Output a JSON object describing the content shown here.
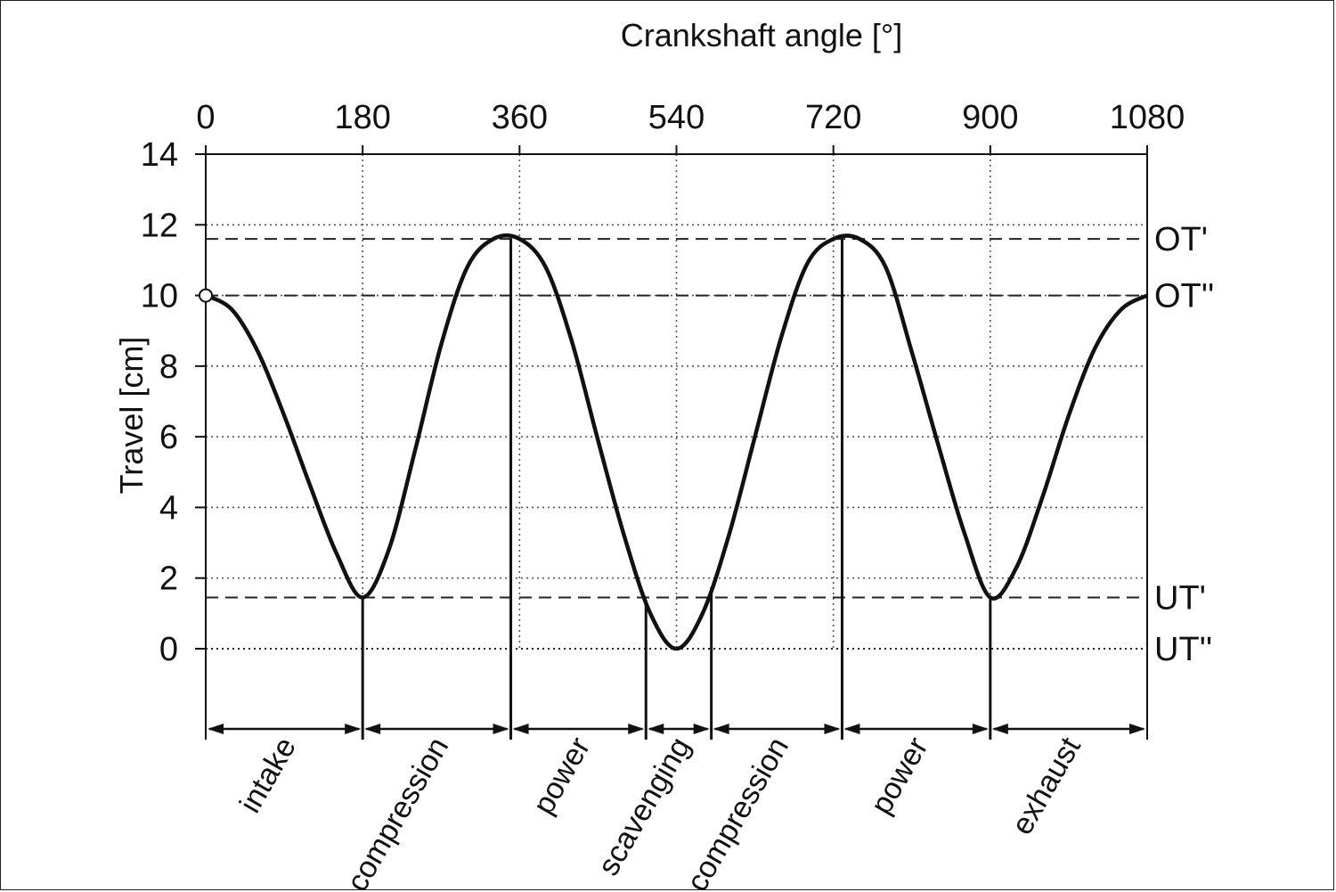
{
  "chart_data": {
    "type": "line",
    "title": "",
    "xlabel": "Crankshaft angle [°]",
    "ylabel": "Travel [cm]",
    "xlim": [
      0,
      1080
    ],
    "ylim": [
      0,
      14
    ],
    "x_ticks": [
      "0",
      "180",
      "360",
      "540",
      "720",
      "900",
      "1080"
    ],
    "y_ticks": [
      "14",
      "12",
      "10",
      "8",
      "6",
      "4",
      "2",
      "0"
    ],
    "grid": true,
    "series": [
      {
        "x": [
          0,
          30,
          60,
          90,
          120,
          150,
          180,
          210,
          240,
          270,
          300,
          330,
          360,
          390,
          420,
          450,
          480,
          510,
          540,
          570,
          600,
          630,
          660,
          690,
          720,
          750,
          780,
          810,
          840,
          870,
          900,
          930,
          960,
          990,
          1020,
          1050,
          1080
        ],
        "values": [
          10,
          9.6,
          8.4,
          6.6,
          4.6,
          2.7,
          1.45,
          2.8,
          5.6,
          8.6,
          10.8,
          11.6,
          11.6,
          10.8,
          8.7,
          5.9,
          3.2,
          1.0,
          0.0,
          1.0,
          3.2,
          6.0,
          8.8,
          10.9,
          11.6,
          11.6,
          10.8,
          8.4,
          5.8,
          3.3,
          1.45,
          2.3,
          4.3,
          6.6,
          8.5,
          9.6,
          10
        ]
      }
    ],
    "reference_lines": [
      {
        "label": "OT'",
        "y": 11.6
      },
      {
        "label": "OT''",
        "y": 10.0
      },
      {
        "label": "UT'",
        "y": 1.45
      },
      {
        "label": "UT''",
        "y": 0.0
      }
    ],
    "phases": [
      {
        "label": "intake",
        "start": 0,
        "end": 180
      },
      {
        "label": "compression",
        "start": 180,
        "end": 350
      },
      {
        "label": "power",
        "start": 350,
        "end": 505
      },
      {
        "label": "scavenging",
        "start": 505,
        "end": 580
      },
      {
        "label": "compression",
        "start": 580,
        "end": 730
      },
      {
        "label": "power",
        "start": 730,
        "end": 900
      },
      {
        "label": "exhaust",
        "start": 900,
        "end": 1080
      }
    ],
    "phase_boundaries": [
      0,
      180,
      350,
      505,
      580,
      730,
      900,
      1080
    ]
  }
}
